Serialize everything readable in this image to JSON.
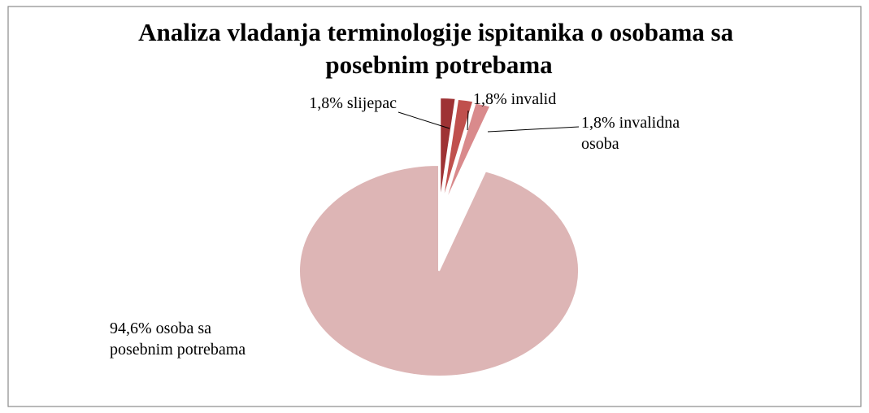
{
  "chart_data": {
    "type": "pie",
    "title": "Analiza vladanja terminologije ispitanika o osobama sa posebnim potrebama",
    "values": [
      1.8,
      1.8,
      1.8,
      94.6
    ],
    "value_labels": [
      "1,8% slijepac",
      "1,8% invalid",
      "1,8% invalidna osoba",
      "94,6% osoba sa posebnim potrebama"
    ],
    "colors": [
      "#9e3234",
      "#c0504d",
      "#d98a8c",
      "#ddb5b5"
    ]
  }
}
